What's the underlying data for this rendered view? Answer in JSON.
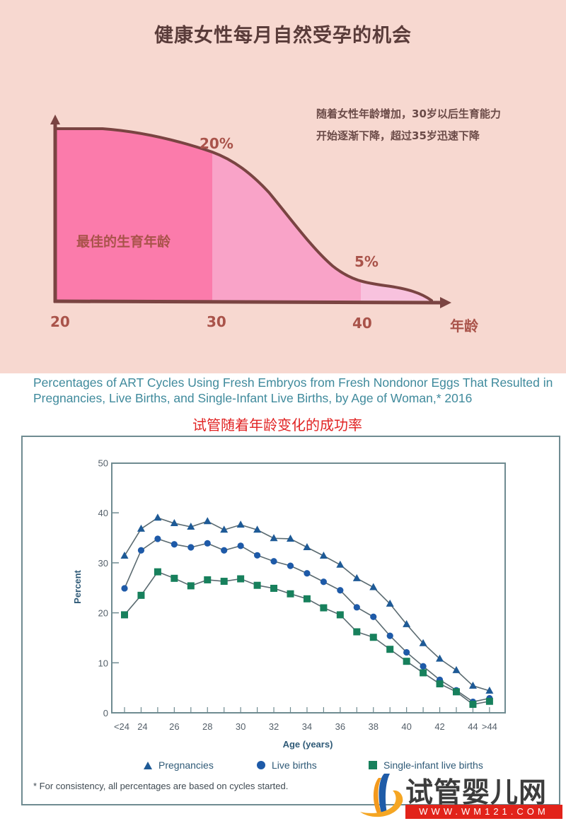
{
  "top_infographic": {
    "title": "健康女性每月自然受孕的机会",
    "note_lines": [
      "随着女性年龄增加，30岁以后生育能力",
      "开始逐渐下降，超过35岁迅速下降"
    ],
    "region_label": "最佳的生育年龄",
    "annotations": {
      "peak": "20%",
      "late": "5%"
    },
    "x_ticks": [
      "20",
      "30",
      "40"
    ],
    "x_axis_label": "年龄",
    "colors": {
      "background": "#f7d8d0",
      "best_age_fill": "#fb7bab",
      "mid_age_fill": "#f9a3c8",
      "late_age_fill": "#f8c2de",
      "curve": "#7a4442",
      "label": "#a9534a"
    }
  },
  "bottom_chart": {
    "title": "Percentages of ART Cycles Using Fresh Embryos from Fresh Nondonor Eggs That Resulted in Pregnancies, Live Births, and Single-Infant Live Births, by Age of Woman,* 2016",
    "subtitle_cn": "试管随着年龄变化的成功率",
    "footnote": "* For consistency, all percentages are based on cycles started.",
    "legend": [
      {
        "label": "Pregnancies",
        "marker": "triangle",
        "color": "#1e5a96"
      },
      {
        "label": "Live births",
        "marker": "circle",
        "color": "#1e5aa8"
      },
      {
        "label": "Single-infant live births",
        "marker": "square",
        "color": "#17805c"
      }
    ]
  },
  "watermark": {
    "text": "试管婴儿网",
    "url": "WWW.WM121.COM"
  },
  "chart_data": [
    {
      "type": "area",
      "title": "健康女性每月自然受孕的机会",
      "xlabel": "年龄",
      "ylabel": "",
      "x_ticks": [
        "20",
        "30",
        "40"
      ],
      "annotations": [
        {
          "text": "20%",
          "x": 30
        },
        {
          "text": "5%",
          "x": 40
        },
        {
          "text": "最佳的生育年龄",
          "region": "20-30"
        }
      ],
      "regions": [
        {
          "range": [
            20,
            30
          ],
          "label": "最佳的生育年龄"
        },
        {
          "range": [
            30,
            40
          ]
        },
        {
          "range": [
            40,
            45
          ]
        }
      ],
      "x": [
        20,
        22,
        24,
        26,
        28,
        30,
        32,
        34,
        36,
        38,
        40,
        42,
        44,
        45
      ],
      "values": [
        25,
        25,
        24.5,
        23.5,
        22,
        20,
        17.5,
        13,
        8.5,
        5.5,
        5,
        4.5,
        2,
        0
      ]
    },
    {
      "type": "line",
      "title": "Percentages of ART Cycles Using Fresh Embryos from Fresh Nondonor Eggs That Resulted in Pregnancies, Live Births, and Single-Infant Live Births, by Age of Woman,* 2016",
      "xlabel": "Age (years)",
      "ylabel": "Percent",
      "ylim": [
        0,
        50
      ],
      "yticks": [
        0,
        10,
        20,
        30,
        40,
        50
      ],
      "categories": [
        "<24",
        "24",
        "25",
        "26",
        "27",
        "28",
        "29",
        "30",
        "31",
        "32",
        "33",
        "34",
        "35",
        "36",
        "37",
        "38",
        "39",
        "40",
        "41",
        "42",
        "43",
        "44",
        ">44"
      ],
      "x_tick_labels": [
        "<24",
        "24",
        "26",
        "28",
        "30",
        "32",
        "34",
        "36",
        "38",
        "40",
        "42",
        "44",
        ">44"
      ],
      "grid": false,
      "legend_position": "bottom",
      "series": [
        {
          "name": "Pregnancies",
          "marker": "triangle",
          "values": [
            31.4,
            36.8,
            39.0,
            37.9,
            37.2,
            38.3,
            36.6,
            37.6,
            36.6,
            34.9,
            34.8,
            33.1,
            31.4,
            29.6,
            26.9,
            25.1,
            21.8,
            17.7,
            13.9,
            10.8,
            8.5,
            5.4,
            4.4
          ]
        },
        {
          "name": "Live births",
          "marker": "circle",
          "values": [
            24.9,
            32.5,
            34.8,
            33.7,
            33.1,
            33.9,
            32.5,
            33.4,
            31.5,
            30.3,
            29.4,
            27.9,
            26.2,
            24.5,
            21.1,
            19.2,
            15.4,
            12.1,
            9.3,
            6.6,
            4.5,
            2.2,
            2.9
          ]
        },
        {
          "name": "Single-infant live births",
          "marker": "square",
          "values": [
            19.6,
            23.5,
            28.2,
            26.9,
            25.4,
            26.6,
            26.3,
            26.8,
            25.5,
            24.9,
            23.8,
            22.8,
            21.0,
            19.6,
            16.2,
            15.1,
            12.7,
            10.3,
            8.0,
            5.8,
            4.2,
            1.7,
            2.3
          ]
        }
      ],
      "footnote": "* For consistency, all percentages are based on cycles started."
    }
  ]
}
